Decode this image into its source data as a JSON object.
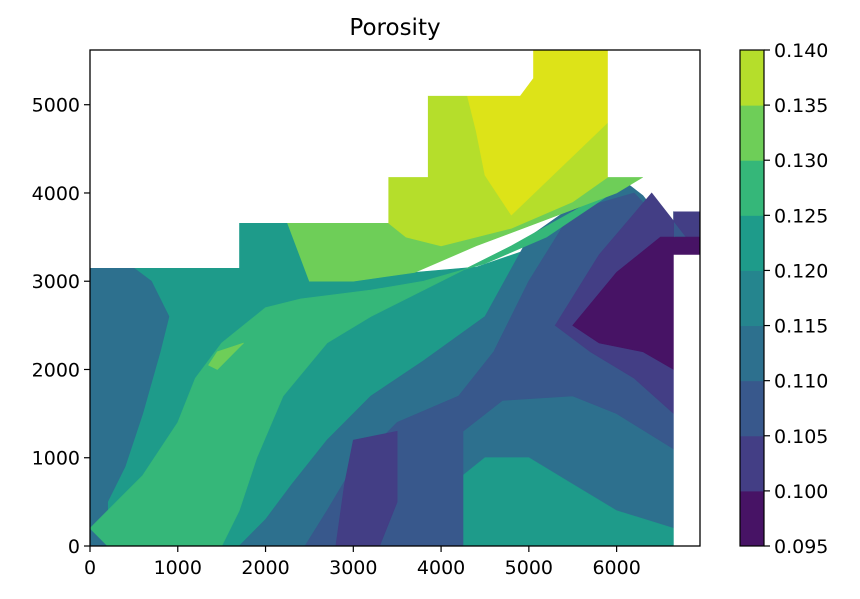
{
  "chart_data": {
    "type": "contour",
    "title": "Porosity",
    "xlabel": "",
    "ylabel": "",
    "xlim": [
      0,
      6950
    ],
    "ylim": [
      0,
      5620
    ],
    "x_ticks": [
      0,
      1000,
      2000,
      3000,
      4000,
      5000,
      6000
    ],
    "x_tick_labels": [
      "0",
      "1000",
      "2000",
      "3000",
      "4000",
      "5000",
      "6000"
    ],
    "y_ticks": [
      0,
      1000,
      2000,
      3000,
      4000,
      5000
    ],
    "y_tick_labels": [
      "0",
      "1000",
      "2000",
      "3000",
      "4000",
      "5000"
    ],
    "colorbar": {
      "levels": [
        0.095,
        0.1,
        0.105,
        0.11,
        0.115,
        0.12,
        0.125,
        0.13,
        0.135,
        0.14
      ],
      "tick_labels": [
        "0.095",
        "0.100",
        "0.105",
        "0.110",
        "0.115",
        "0.120",
        "0.125",
        "0.130",
        "0.135",
        "0.140"
      ],
      "colors": [
        "#471365",
        "#433e85",
        "#38588c",
        "#2d708e",
        "#25858e",
        "#1e9b8a",
        "#35b779",
        "#6ece58",
        "#b5de2b",
        "#dde318"
      ]
    },
    "regions": [
      {
        "level": "0.115-0.120",
        "color": "#1e9b8a",
        "points": [
          [
            0,
            0
          ],
          [
            6650,
            0
          ],
          [
            6650,
            3790
          ],
          [
            6950,
            3790
          ],
          [
            6950,
            3150
          ],
          [
            6000,
            3700
          ],
          [
            4400,
            3160
          ],
          [
            3000,
            3040
          ],
          [
            2250,
            3660
          ],
          [
            1700,
            3660
          ],
          [
            1700,
            3150
          ],
          [
            0,
            3150
          ]
        ]
      },
      {
        "level": "0.110-0.115",
        "color": "#2d708e",
        "points": [
          [
            0,
            0
          ],
          [
            200,
            0
          ],
          [
            200,
            500
          ],
          [
            400,
            900
          ],
          [
            600,
            1500
          ],
          [
            800,
            2200
          ],
          [
            900,
            2600
          ],
          [
            700,
            3000
          ],
          [
            500,
            3150
          ],
          [
            0,
            3150
          ]
        ]
      },
      {
        "level": "0.110-0.115",
        "color": "#2d708e",
        "points": [
          [
            1700,
            0
          ],
          [
            6650,
            0
          ],
          [
            6650,
            3790
          ],
          [
            6950,
            3790
          ],
          [
            6950,
            3150
          ],
          [
            6300,
            3970
          ],
          [
            6000,
            4200
          ],
          [
            5000,
            3500
          ],
          [
            4500,
            2600
          ],
          [
            3800,
            2100
          ],
          [
            3200,
            1700
          ],
          [
            2700,
            1200
          ],
          [
            2300,
            700
          ],
          [
            2000,
            300
          ]
        ]
      },
      {
        "level": "0.115-0.120",
        "color": "#1e9b8a",
        "points": [
          [
            4250,
            0
          ],
          [
            6650,
            0
          ],
          [
            6650,
            200
          ],
          [
            6000,
            400
          ],
          [
            5500,
            700
          ],
          [
            5000,
            1000
          ],
          [
            4500,
            1000
          ],
          [
            4250,
            800
          ]
        ]
      },
      {
        "level": "0.105-0.110",
        "color": "#38588c",
        "points": [
          [
            2450,
            0
          ],
          [
            4250,
            0
          ],
          [
            4250,
            1300
          ],
          [
            4700,
            1650
          ],
          [
            5500,
            1700
          ],
          [
            6000,
            1500
          ],
          [
            6650,
            1100
          ],
          [
            6650,
            3790
          ],
          [
            6950,
            3790
          ],
          [
            6950,
            3200
          ],
          [
            6200,
            4000
          ],
          [
            5500,
            3800
          ],
          [
            5000,
            3000
          ],
          [
            4600,
            2200
          ],
          [
            4200,
            1700
          ],
          [
            3500,
            1400
          ],
          [
            3000,
            900
          ],
          [
            2700,
            400
          ]
        ]
      },
      {
        "level": "0.100-0.105",
        "color": "#433e85",
        "points": [
          [
            2800,
            0
          ],
          [
            3300,
            0
          ],
          [
            3500,
            500
          ],
          [
            3500,
            1300
          ],
          [
            3000,
            1200
          ],
          [
            2900,
            700
          ]
        ]
      },
      {
        "level": "0.100-0.105",
        "color": "#433e85",
        "points": [
          [
            6650,
            1500
          ],
          [
            6650,
            3790
          ],
          [
            6950,
            3790
          ],
          [
            6950,
            3300
          ],
          [
            6400,
            4000
          ],
          [
            5800,
            3300
          ],
          [
            5300,
            2500
          ],
          [
            5700,
            2200
          ],
          [
            6200,
            1900
          ]
        ]
      },
      {
        "level": "0.095-0.100",
        "color": "#471365",
        "points": [
          [
            6650,
            2000
          ],
          [
            6650,
            3200
          ],
          [
            6950,
            3200
          ],
          [
            6950,
            3500
          ],
          [
            6500,
            3500
          ],
          [
            6000,
            3100
          ],
          [
            5500,
            2500
          ],
          [
            5800,
            2300
          ],
          [
            6300,
            2200
          ]
        ]
      },
      {
        "level": "0.120-0.125",
        "color": "#35b779",
        "points": [
          [
            0,
            200
          ],
          [
            600,
            800
          ],
          [
            1000,
            1400
          ],
          [
            1200,
            1900
          ],
          [
            1500,
            2300
          ],
          [
            2000,
            2700
          ],
          [
            2400,
            2800
          ],
          [
            3200,
            2900
          ],
          [
            3800,
            3000
          ],
          [
            4500,
            3200
          ],
          [
            5200,
            3500
          ],
          [
            5800,
            3900
          ],
          [
            6200,
            4180
          ],
          [
            4800,
            3400
          ],
          [
            4000,
            3000
          ],
          [
            3200,
            2600
          ],
          [
            2700,
            2300
          ],
          [
            2200,
            1700
          ],
          [
            1900,
            1000
          ],
          [
            1700,
            400
          ],
          [
            1500,
            0
          ],
          [
            200,
            0
          ]
        ]
      },
      {
        "level": "0.125-0.130",
        "color": "#6ece58",
        "points": [
          [
            1450,
            2000
          ],
          [
            1700,
            2250
          ],
          [
            1750,
            2300
          ],
          [
            1450,
            2200
          ],
          [
            1350,
            2050
          ]
        ]
      },
      {
        "level": "0.125-0.130",
        "color": "#6ece58",
        "points": [
          [
            2250,
            3660
          ],
          [
            3400,
            3660
          ],
          [
            3400,
            4180
          ],
          [
            3850,
            4180
          ],
          [
            3850,
            5100
          ],
          [
            4250,
            5100
          ],
          [
            5500,
            5620
          ],
          [
            6300,
            4180
          ],
          [
            6000,
            4000
          ],
          [
            5200,
            3700
          ],
          [
            4400,
            3400
          ],
          [
            3700,
            3100
          ],
          [
            3000,
            3000
          ],
          [
            2500,
            3000
          ]
        ]
      },
      {
        "level": "0.130-0.135",
        "color": "#b5de2b",
        "points": [
          [
            3400,
            3660
          ],
          [
            3400,
            4180
          ],
          [
            3850,
            4180
          ],
          [
            3850,
            5100
          ],
          [
            4250,
            5100
          ],
          [
            5500,
            5620
          ],
          [
            5900,
            4800
          ],
          [
            5900,
            4180
          ],
          [
            5500,
            3900
          ],
          [
            4800,
            3600
          ],
          [
            4000,
            3400
          ],
          [
            3600,
            3500
          ]
        ]
      },
      {
        "level": "0.135-0.140",
        "color": "#dde318",
        "points": [
          [
            4300,
            5100
          ],
          [
            4900,
            5100
          ],
          [
            5050,
            5300
          ],
          [
            5050,
            5620
          ],
          [
            5900,
            5620
          ],
          [
            5900,
            4800
          ],
          [
            4800,
            3750
          ],
          [
            4500,
            4200
          ],
          [
            4400,
            4700
          ]
        ]
      }
    ],
    "blank_mask": [
      [
        [
          0,
          3150
        ],
        [
          0,
          5620
        ],
        [
          3850,
          5620
        ],
        [
          3850,
          5100
        ],
        [
          3850,
          4180
        ],
        [
          3400,
          4180
        ],
        [
          3400,
          3660
        ],
        [
          2250,
          3660
        ],
        [
          1700,
          3660
        ],
        [
          1700,
          3150
        ]
      ],
      [
        [
          3850,
          5100
        ],
        [
          3850,
          5620
        ],
        [
          5050,
          5620
        ],
        [
          5050,
          5300
        ],
        [
          4900,
          5100
        ]
      ],
      [
        [
          5900,
          5620
        ],
        [
          6950,
          5620
        ],
        [
          6950,
          3790
        ],
        [
          6650,
          3790
        ],
        [
          6300,
          4180
        ],
        [
          5900,
          4180
        ]
      ],
      [
        [
          6650,
          0
        ],
        [
          6950,
          0
        ],
        [
          6950,
          3300
        ],
        [
          6650,
          3300
        ]
      ]
    ]
  }
}
